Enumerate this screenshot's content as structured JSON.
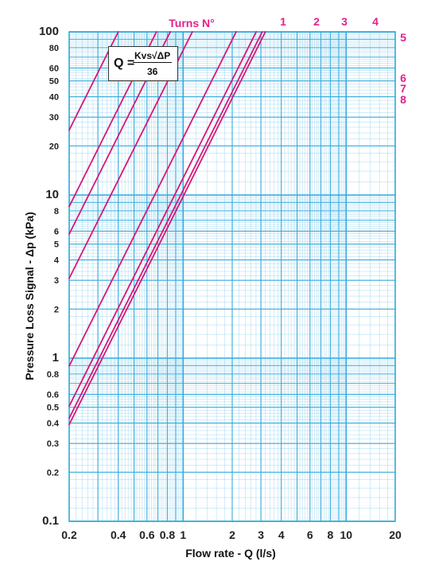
{
  "chart_data": {
    "type": "line",
    "title": "Turns N°",
    "xlabel": "Flow rate - Q (l/s)",
    "ylabel": "Pressure Loss Signal  - Δp (kPa)",
    "x_scale": "log",
    "y_scale": "log",
    "xlim": [
      0.2,
      20
    ],
    "ylim": [
      0.1,
      100
    ],
    "grid": true,
    "x_tick_labels": [
      "0.2",
      "0.4",
      "0.6",
      "0.8",
      "1",
      "2",
      "3",
      "4",
      "6",
      "8",
      "10",
      "20"
    ],
    "x_tick_values": [
      0.2,
      0.4,
      0.6,
      0.8,
      1,
      2,
      3,
      4,
      6,
      8,
      10,
      20
    ],
    "y_tick_labels": [
      "0.1",
      "0.2",
      "0.3",
      "0.4",
      "0.5",
      "0.6",
      "0.8",
      "1",
      "2",
      "3",
      "4",
      "5",
      "6",
      "8",
      "10",
      "20",
      "30",
      "40",
      "50",
      "60",
      "80",
      "100"
    ],
    "y_tick_values": [
      0.1,
      0.2,
      0.3,
      0.4,
      0.5,
      0.6,
      0.8,
      1,
      2,
      3,
      4,
      5,
      6,
      8,
      10,
      20,
      30,
      40,
      50,
      60,
      80,
      100
    ],
    "series": [
      {
        "name": "1",
        "kvs": 1.44
      },
      {
        "name": "2",
        "kvs": 2.47
      },
      {
        "name": "3",
        "kvs": 3.0
      },
      {
        "name": "4",
        "kvs": 4.1
      },
      {
        "name": "5",
        "kvs": 7.61
      },
      {
        "name": "6",
        "kvs": 10.1
      },
      {
        "name": "7",
        "kvs": 11.0
      },
      {
        "name": "8",
        "kvs": 11.5
      }
    ],
    "colors": {
      "grid": "#33aadd",
      "curves": "#d9157a",
      "labels": "#e0218a"
    }
  },
  "formula": {
    "lhs": "Q =",
    "numerator": "Kvs√ΔP",
    "denominator": "36"
  }
}
